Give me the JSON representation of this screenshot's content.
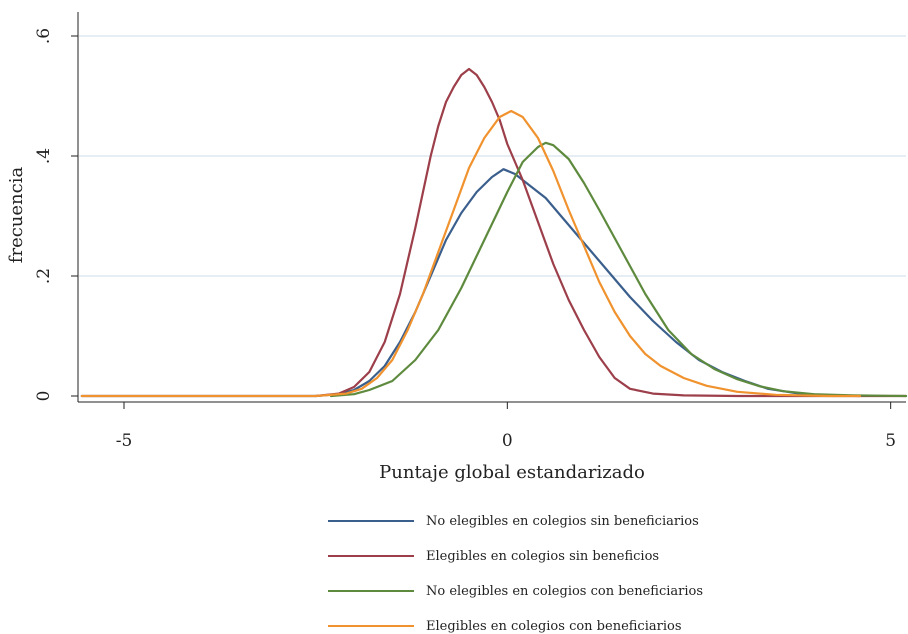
{
  "chart_data": {
    "type": "line",
    "title": "",
    "xlabel": "Puntaje global estandarizado",
    "ylabel": "frecuencia",
    "xlim": [
      -5.6,
      5.2
    ],
    "ylim": [
      -0.01,
      0.64
    ],
    "xticks": [
      {
        "value": -5,
        "label": "-5"
      },
      {
        "value": 0,
        "label": "0"
      },
      {
        "value": 5,
        "label": "5"
      }
    ],
    "yticks": [
      {
        "value": 0,
        "label": "0"
      },
      {
        "value": 0.2,
        "label": ".2"
      },
      {
        "value": 0.4,
        "label": ".4"
      },
      {
        "value": 0.6,
        "label": ".6"
      }
    ],
    "grid": "horizontal",
    "legend_position": "bottom",
    "series": [
      {
        "name": "No elegibles en colegios sin beneficiarios",
        "color": "#3b5f8c",
        "points": [
          [
            -5.55,
            0
          ],
          [
            -2.5,
            0
          ],
          [
            -2.2,
            0.003
          ],
          [
            -2.0,
            0.01
          ],
          [
            -1.8,
            0.025
          ],
          [
            -1.6,
            0.05
          ],
          [
            -1.4,
            0.09
          ],
          [
            -1.2,
            0.14
          ],
          [
            -1.0,
            0.2
          ],
          [
            -0.8,
            0.26
          ],
          [
            -0.6,
            0.305
          ],
          [
            -0.4,
            0.34
          ],
          [
            -0.2,
            0.365
          ],
          [
            -0.05,
            0.378
          ],
          [
            0.1,
            0.37
          ],
          [
            0.3,
            0.35
          ],
          [
            0.5,
            0.33
          ],
          [
            0.7,
            0.3
          ],
          [
            1.0,
            0.255
          ],
          [
            1.3,
            0.21
          ],
          [
            1.6,
            0.165
          ],
          [
            1.9,
            0.125
          ],
          [
            2.2,
            0.09
          ],
          [
            2.5,
            0.06
          ],
          [
            2.8,
            0.04
          ],
          [
            3.1,
            0.025
          ],
          [
            3.4,
            0.012
          ],
          [
            3.8,
            0.004
          ],
          [
            4.2,
            0.001
          ],
          [
            4.6,
            0
          ]
        ]
      },
      {
        "name": "Elegibles en colegios sin beneficios",
        "color": "#9c3f4a",
        "points": [
          [
            -2.5,
            0
          ],
          [
            -2.2,
            0.004
          ],
          [
            -2.0,
            0.015
          ],
          [
            -1.8,
            0.04
          ],
          [
            -1.6,
            0.09
          ],
          [
            -1.4,
            0.17
          ],
          [
            -1.2,
            0.28
          ],
          [
            -1.0,
            0.4
          ],
          [
            -0.9,
            0.45
          ],
          [
            -0.8,
            0.49
          ],
          [
            -0.7,
            0.515
          ],
          [
            -0.6,
            0.535
          ],
          [
            -0.5,
            0.545
          ],
          [
            -0.4,
            0.535
          ],
          [
            -0.3,
            0.515
          ],
          [
            -0.2,
            0.49
          ],
          [
            -0.1,
            0.46
          ],
          [
            0.0,
            0.42
          ],
          [
            0.2,
            0.36
          ],
          [
            0.4,
            0.29
          ],
          [
            0.6,
            0.22
          ],
          [
            0.8,
            0.16
          ],
          [
            1.0,
            0.11
          ],
          [
            1.2,
            0.065
          ],
          [
            1.4,
            0.03
          ],
          [
            1.6,
            0.012
          ],
          [
            1.9,
            0.004
          ],
          [
            2.3,
            0.001
          ],
          [
            3.0,
            0
          ],
          [
            5.2,
            0
          ]
        ]
      },
      {
        "name": "No elegibles en colegios con beneficiarios",
        "color": "#5e8a3e",
        "points": [
          [
            -2.3,
            0
          ],
          [
            -2.0,
            0.003
          ],
          [
            -1.8,
            0.01
          ],
          [
            -1.5,
            0.025
          ],
          [
            -1.2,
            0.06
          ],
          [
            -0.9,
            0.11
          ],
          [
            -0.6,
            0.18
          ],
          [
            -0.3,
            0.26
          ],
          [
            0.0,
            0.34
          ],
          [
            0.2,
            0.39
          ],
          [
            0.4,
            0.415
          ],
          [
            0.5,
            0.422
          ],
          [
            0.6,
            0.418
          ],
          [
            0.8,
            0.395
          ],
          [
            1.0,
            0.355
          ],
          [
            1.2,
            0.31
          ],
          [
            1.5,
            0.24
          ],
          [
            1.8,
            0.17
          ],
          [
            2.1,
            0.11
          ],
          [
            2.4,
            0.07
          ],
          [
            2.7,
            0.045
          ],
          [
            3.0,
            0.028
          ],
          [
            3.3,
            0.016
          ],
          [
            3.6,
            0.008
          ],
          [
            4.0,
            0.003
          ],
          [
            4.5,
            0.001
          ],
          [
            5.2,
            0
          ]
        ]
      },
      {
        "name": "Elegibles en colegios con beneficiarios",
        "color": "#f0922e",
        "points": [
          [
            -5.55,
            0
          ],
          [
            -2.5,
            0
          ],
          [
            -2.1,
            0.004
          ],
          [
            -1.9,
            0.012
          ],
          [
            -1.7,
            0.03
          ],
          [
            -1.5,
            0.06
          ],
          [
            -1.3,
            0.11
          ],
          [
            -1.1,
            0.17
          ],
          [
            -0.9,
            0.24
          ],
          [
            -0.7,
            0.31
          ],
          [
            -0.5,
            0.38
          ],
          [
            -0.3,
            0.43
          ],
          [
            -0.1,
            0.465
          ],
          [
            0.05,
            0.475
          ],
          [
            0.2,
            0.465
          ],
          [
            0.4,
            0.43
          ],
          [
            0.6,
            0.375
          ],
          [
            0.8,
            0.31
          ],
          [
            1.0,
            0.25
          ],
          [
            1.2,
            0.19
          ],
          [
            1.4,
            0.14
          ],
          [
            1.6,
            0.1
          ],
          [
            1.8,
            0.07
          ],
          [
            2.0,
            0.05
          ],
          [
            2.3,
            0.03
          ],
          [
            2.6,
            0.017
          ],
          [
            3.0,
            0.007
          ],
          [
            3.5,
            0.002
          ],
          [
            4.2,
            0
          ],
          [
            4.6,
            0
          ]
        ]
      }
    ]
  }
}
